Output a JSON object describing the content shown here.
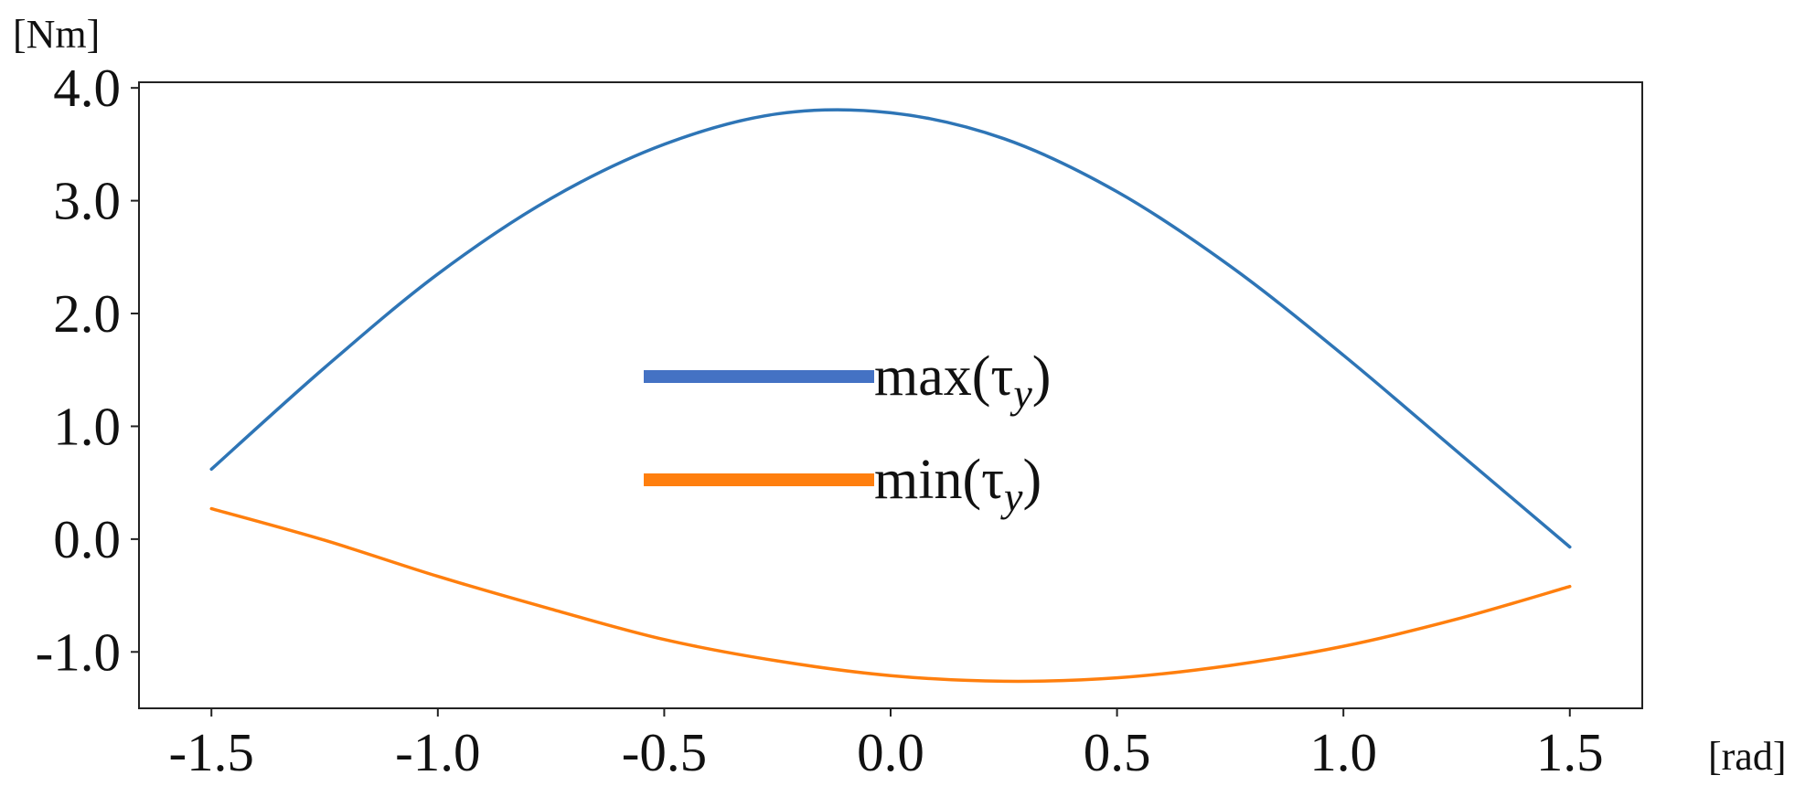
{
  "chart_data": {
    "type": "line",
    "xlabel": "[rad]",
    "ylabel": "[Nm]",
    "xlim": [
      -1.66,
      1.66
    ],
    "ylim": [
      -1.5,
      4.05
    ],
    "x_ticks": [
      -1.5,
      -1.0,
      -0.5,
      0.0,
      0.5,
      1.0,
      1.5
    ],
    "x_tick_labels": [
      "-1.5",
      "-1.0",
      "-0.5",
      "0.0",
      "0.5",
      "1.0",
      "1.5"
    ],
    "y_ticks": [
      -1.0,
      0.0,
      1.0,
      2.0,
      3.0,
      4.0
    ],
    "y_tick_labels": [
      "-1.0",
      "0.0",
      "1.0",
      "2.0",
      "3.0",
      "4.0"
    ],
    "grid": false,
    "legend_position": "center",
    "series": [
      {
        "name": "max(τy)",
        "legend_base": "max(τ",
        "legend_sub": "y",
        "legend_close": ")",
        "color": "#2e75b6",
        "legend_color": "#4472c4",
        "x": [
          -1.5,
          -1.25,
          -1.0,
          -0.75,
          -0.5,
          -0.25,
          0.0,
          0.25,
          0.5,
          0.75,
          1.0,
          1.25,
          1.5
        ],
        "y": [
          0.62,
          1.52,
          2.35,
          3.02,
          3.5,
          3.77,
          3.78,
          3.55,
          3.08,
          2.42,
          1.63,
          0.78,
          -0.07
        ]
      },
      {
        "name": "min(τy)",
        "legend_base": "min(τ",
        "legend_sub": "y",
        "legend_close": ")",
        "color": "#ff7f0e",
        "legend_color": "#ff7f0e",
        "x": [
          -1.5,
          -1.25,
          -1.0,
          -0.75,
          -0.5,
          -0.25,
          0.0,
          0.25,
          0.5,
          0.75,
          1.0,
          1.25,
          1.5
        ],
        "y": [
          0.27,
          -0.01,
          -0.33,
          -0.62,
          -0.89,
          -1.08,
          -1.21,
          -1.26,
          -1.23,
          -1.12,
          -0.95,
          -0.71,
          -0.42
        ]
      }
    ]
  }
}
